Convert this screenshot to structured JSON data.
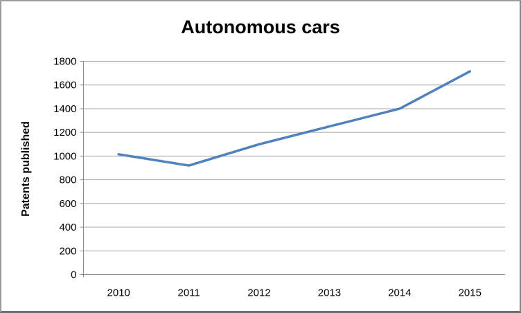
{
  "chart_data": {
    "type": "line",
    "title": "Autonomous cars",
    "xlabel": "",
    "ylabel": "Patents published",
    "categories": [
      "2010",
      "2011",
      "2012",
      "2013",
      "2014",
      "2015"
    ],
    "series": [
      {
        "name": "Patents published",
        "color": "#4F81BD",
        "values": [
          1015,
          920,
          1100,
          1250,
          1400,
          1715
        ]
      }
    ],
    "ylim": [
      0,
      1800
    ],
    "yticks": [
      0,
      200,
      400,
      600,
      800,
      1000,
      1200,
      1400,
      1600,
      1800
    ],
    "grid": true,
    "legend": "none",
    "gridline_color": "#A6A6A6",
    "axis_color": "#8C8C8C",
    "text_color": "#000000",
    "background_color": "#FFFFFF"
  }
}
